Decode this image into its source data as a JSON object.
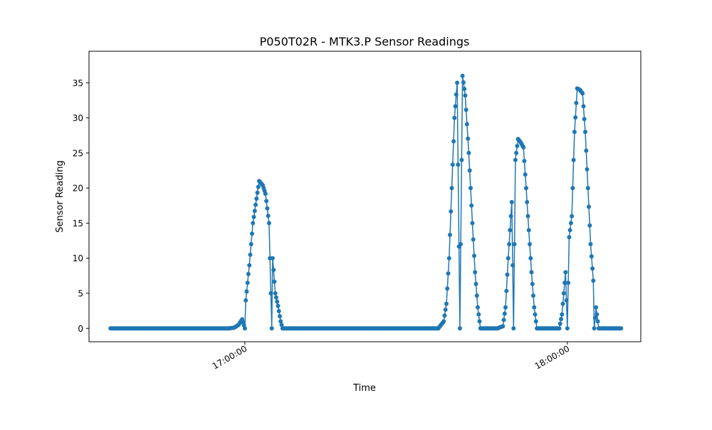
{
  "chart_data": {
    "type": "line",
    "title": "P050T02R - MTK3.P Sensor Readings",
    "xlabel": "Time",
    "ylabel": "Sensor Reading",
    "x_ticks": [
      "17:00:00",
      "18:00:00"
    ],
    "y_ticks": [
      0,
      5,
      10,
      15,
      20,
      25,
      30,
      35
    ],
    "ylim": [
      -1.9,
      39.5
    ],
    "xlim": [
      "16:31:00",
      "18:13:40"
    ],
    "grid": false,
    "line_color": "#1f77b4",
    "marker": "circle",
    "series": [
      {
        "points": [
          [
            "16:35:00",
            0
          ],
          [
            "16:40:00",
            0
          ],
          [
            "16:45:00",
            0
          ],
          [
            "16:50:00",
            0
          ],
          [
            "16:55:00",
            0
          ],
          [
            "17:00:00",
            0
          ],
          [
            "17:05:00",
            0
          ],
          [
            "17:10:00",
            0
          ],
          [
            "17:15:00",
            0
          ],
          [
            "17:20:00",
            0
          ],
          [
            "17:25:00",
            0
          ],
          [
            "17:30:00",
            0
          ],
          [
            "17:35:00",
            0
          ],
          [
            "17:40:00",
            0
          ],
          [
            "17:45:00",
            0
          ],
          [
            "17:50:00",
            0
          ],
          [
            "17:55:00",
            0
          ],
          [
            "18:00:00",
            0
          ],
          [
            "18:05:00",
            0
          ],
          [
            "16:40:00",
            0
          ],
          [
            "16:50:00",
            0
          ],
          [
            "16:57:00",
            0
          ],
          [
            "16:58:00",
            0.1
          ],
          [
            "16:58:50",
            0.5
          ],
          [
            "16:59:30",
            1.3
          ],
          [
            "17:00:10",
            4.0
          ],
          [
            "17:00:50",
            9.0
          ],
          [
            "17:01:30",
            15.0
          ],
          [
            "17:02:10",
            18.5
          ],
          [
            "17:02:40",
            21.0
          ],
          [
            "17:03:20",
            20.4
          ],
          [
            "17:03:50",
            19.2
          ],
          [
            "17:04:30",
            15.0
          ],
          [
            "17:05:10",
            10.0
          ],
          [
            "17:05:40",
            5.0
          ],
          [
            "17:06:10",
            3.2
          ],
          [
            "17:06:40",
            1.0
          ],
          [
            "17:07:00",
            0
          ],
          [
            "17:20:00",
            0
          ],
          [
            "17:35:00",
            0
          ],
          [
            "17:36:00",
            0
          ],
          [
            "17:37:00",
            1.0
          ],
          [
            "17:37:30",
            3.5
          ],
          [
            "17:38:00",
            10.0
          ],
          [
            "17:38:30",
            20.0
          ],
          [
            "17:39:00",
            30.0
          ],
          [
            "17:39:30",
            35.0
          ],
          [
            "17:40:00",
            37.6
          ],
          [
            "17:40:30",
            36.0
          ],
          [
            "17:41:00",
            33.2
          ],
          [
            "17:41:40",
            25.0
          ],
          [
            "17:42:20",
            15.0
          ],
          [
            "17:42:50",
            8.0
          ],
          [
            "17:43:20",
            3.0
          ],
          [
            "17:43:50",
            0
          ],
          [
            "17:45:00",
            0
          ],
          [
            "17:47:00",
            0
          ],
          [
            "17:48:00",
            0.3
          ],
          [
            "17:48:30",
            3.0
          ],
          [
            "17:49:00",
            10.0
          ],
          [
            "17:49:40",
            18.0
          ],
          [
            "17:50:20",
            24.0
          ],
          [
            "17:50:50",
            27.0
          ],
          [
            "17:51:20",
            26.5
          ],
          [
            "17:51:50",
            25.8
          ],
          [
            "17:52:20",
            20.0
          ],
          [
            "17:52:50",
            14.0
          ],
          [
            "17:53:20",
            8.0
          ],
          [
            "17:53:50",
            3.0
          ],
          [
            "17:54:20",
            0
          ],
          [
            "17:56:00",
            0
          ],
          [
            "17:58:00",
            0
          ],
          [
            "17:58:30",
            0
          ],
          [
            "17:59:00",
            2.0
          ],
          [
            "17:59:40",
            8.0
          ],
          [
            "18:00:20",
            13.0
          ],
          [
            "18:00:50",
            16.0
          ],
          [
            "18:01:20",
            28.0
          ],
          [
            "18:01:50",
            34.2
          ],
          [
            "18:02:20",
            34.0
          ],
          [
            "18:02:50",
            33.5
          ],
          [
            "18:03:20",
            28.0
          ],
          [
            "18:03:50",
            20.0
          ],
          [
            "18:04:20",
            12.0
          ],
          [
            "18:04:50",
            6.8
          ],
          [
            "18:05:20",
            3.0
          ],
          [
            "18:05:50",
            0
          ],
          [
            "18:07:00",
            0
          ],
          [
            "18:10:00",
            0
          ]
        ]
      }
    ]
  }
}
